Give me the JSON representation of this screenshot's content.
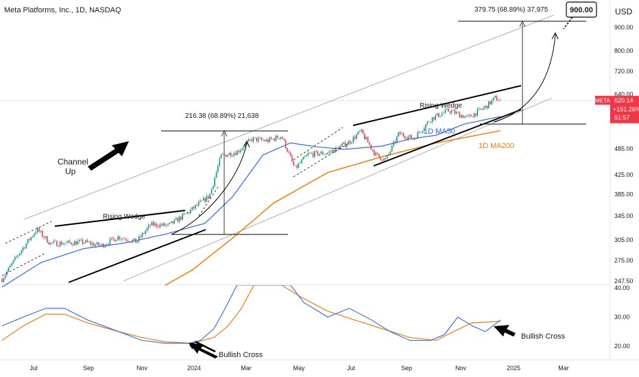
{
  "header": {
    "title": "Meta Platforms, Inc., 1D, NASDAQ",
    "currency": "USD"
  },
  "chart_data": {
    "type": "candlestick",
    "title": "Meta Platforms, Inc., 1D, NASDAQ",
    "price_axis": {
      "ticks": [
        "900.00",
        "800.00",
        "720.00",
        "640.00",
        "485.00",
        "425.00",
        "385.00",
        "345.00",
        "305.00",
        "275.00",
        "247.50"
      ]
    },
    "oscillator_axis": {
      "ticks": [
        "40.00",
        "30.00",
        "20.00"
      ]
    },
    "x_axis": {
      "ticks": [
        "Jul",
        "Sep",
        "Nov",
        "2024",
        "Mar",
        "May",
        "Jul",
        "Sep",
        "Nov",
        "2025",
        "Mar"
      ]
    },
    "price_badge": {
      "symbol": "META",
      "price": "620.14",
      "change": "+151.26%",
      "countdown": "51:57"
    },
    "target": "900.00",
    "annotations": {
      "channel": "Channel\nUp",
      "wedge1": "Rising Wedge",
      "wedge2": "Rising Wedge",
      "ma50": "1D MA50",
      "ma200": "1D MA200",
      "measure1": "216.38 (68.89%) 21,638",
      "measure2": "379.75 (68.89%) 37,975",
      "bullish1": "Bullish Cross",
      "bullish2": "Bullish Cross"
    },
    "price_path": [
      [
        "2023-06-01",
        250
      ],
      [
        "2023-06-20",
        285
      ],
      [
        "2023-07-10",
        322
      ],
      [
        "2023-07-25",
        300
      ],
      [
        "2023-08-10",
        300
      ],
      [
        "2023-09-01",
        302
      ],
      [
        "2023-09-20",
        296
      ],
      [
        "2023-10-10",
        310
      ],
      [
        "2023-10-30",
        302
      ],
      [
        "2023-11-15",
        330
      ],
      [
        "2023-12-05",
        328
      ],
      [
        "2023-12-28",
        352
      ],
      [
        "2024-01-20",
        382
      ],
      [
        "2024-02-02",
        468
      ],
      [
        "2024-02-20",
        478
      ],
      [
        "2024-03-08",
        510
      ],
      [
        "2024-03-25",
        505
      ],
      [
        "2024-04-10",
        518
      ],
      [
        "2024-04-25",
        438
      ],
      [
        "2024-05-10",
        472
      ],
      [
        "2024-06-01",
        475
      ],
      [
        "2024-06-25",
        502
      ],
      [
        "2024-07-08",
        530
      ],
      [
        "2024-07-25",
        470
      ],
      [
        "2024-08-05",
        458
      ],
      [
        "2024-08-20",
        525
      ],
      [
        "2024-09-05",
        510
      ],
      [
        "2024-09-25",
        566
      ],
      [
        "2024-10-15",
        590
      ],
      [
        "2024-11-05",
        568
      ],
      [
        "2024-11-25",
        600
      ],
      [
        "2024-12-06",
        628
      ],
      [
        "2024-12-12",
        620
      ]
    ],
    "ma50": [
      [
        "2023-06-01",
        240
      ],
      [
        "2023-07-15",
        272
      ],
      [
        "2023-09-01",
        292
      ],
      [
        "2023-10-15",
        300
      ],
      [
        "2023-12-01",
        314
      ],
      [
        "2024-01-15",
        332
      ],
      [
        "2024-02-15",
        380
      ],
      [
        "2024-03-20",
        470
      ],
      [
        "2024-04-20",
        500
      ],
      [
        "2024-05-20",
        490
      ],
      [
        "2024-06-20",
        484
      ],
      [
        "2024-08-01",
        492
      ],
      [
        "2024-09-01",
        510
      ],
      [
        "2024-10-01",
        520
      ],
      [
        "2024-11-01",
        550
      ],
      [
        "2024-12-12",
        572
      ]
    ],
    "ma200": [
      [
        "2023-12-01",
        242
      ],
      [
        "2024-01-01",
        262
      ],
      [
        "2024-02-15",
        308
      ],
      [
        "2024-04-01",
        368
      ],
      [
        "2024-06-01",
        430
      ],
      [
        "2024-08-01",
        466
      ],
      [
        "2024-10-01",
        500
      ],
      [
        "2024-12-12",
        532
      ]
    ],
    "osc_blue": [
      [
        "2023-06-01",
        27
      ],
      [
        "2023-06-25",
        30
      ],
      [
        "2023-07-20",
        33
      ],
      [
        "2023-08-10",
        33
      ],
      [
        "2023-09-05",
        29
      ],
      [
        "2023-10-10",
        25
      ],
      [
        "2023-11-05",
        22
      ],
      [
        "2023-12-01",
        21
      ],
      [
        "2023-12-28",
        21
      ],
      [
        "2024-01-10",
        22
      ],
      [
        "2024-01-25",
        26
      ],
      [
        "2024-02-05",
        32
      ],
      [
        "2024-02-20",
        41
      ],
      [
        "2024-04-20",
        41
      ],
      [
        "2024-05-05",
        35
      ],
      [
        "2024-06-01",
        30
      ],
      [
        "2024-06-25",
        33
      ],
      [
        "2024-07-20",
        29
      ],
      [
        "2024-08-10",
        25
      ],
      [
        "2024-09-01",
        22
      ],
      [
        "2024-09-25",
        22
      ],
      [
        "2024-10-10",
        24
      ],
      [
        "2024-10-25",
        30
      ],
      [
        "2024-11-10",
        27
      ],
      [
        "2024-11-25",
        25
      ],
      [
        "2024-12-12",
        29
      ]
    ],
    "osc_orange": [
      [
        "2023-06-01",
        22
      ],
      [
        "2023-06-25",
        27
      ],
      [
        "2023-07-20",
        31
      ],
      [
        "2023-08-10",
        31
      ],
      [
        "2023-09-05",
        28
      ],
      [
        "2023-10-10",
        25
      ],
      [
        "2023-11-05",
        23
      ],
      [
        "2023-12-01",
        21.5
      ],
      [
        "2024-01-01",
        21
      ],
      [
        "2024-01-25",
        23
      ],
      [
        "2024-02-10",
        27
      ],
      [
        "2024-02-25",
        33
      ],
      [
        "2024-03-10",
        41
      ],
      [
        "2024-04-10",
        41
      ],
      [
        "2024-05-01",
        37
      ],
      [
        "2024-06-01",
        32
      ],
      [
        "2024-07-01",
        29
      ],
      [
        "2024-08-01",
        26
      ],
      [
        "2024-09-01",
        23
      ],
      [
        "2024-10-01",
        22
      ],
      [
        "2024-10-20",
        25
      ],
      [
        "2024-11-10",
        28
      ],
      [
        "2024-12-12",
        28.5
      ]
    ]
  }
}
